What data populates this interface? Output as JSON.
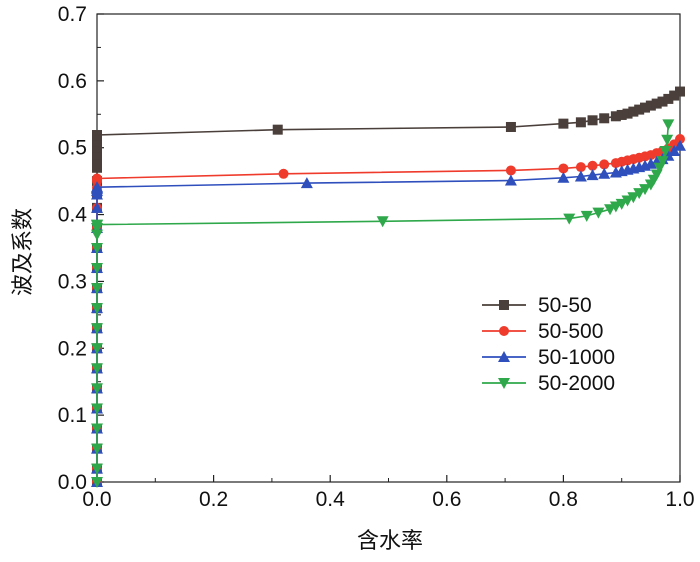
{
  "chart_data": {
    "type": "line",
    "title": "",
    "xlabel": "含水率",
    "ylabel": "波及系数",
    "xlim": [
      0,
      1.0
    ],
    "ylim": [
      0,
      0.7
    ],
    "x_ticks": [
      "0.0",
      "0.2",
      "0.4",
      "0.6",
      "0.8",
      "1.0"
    ],
    "y_ticks": [
      "0.0",
      "0.1",
      "0.2",
      "0.3",
      "0.4",
      "0.5",
      "0.6",
      "0.7"
    ],
    "legend_position": "right-middle",
    "grid": false,
    "series": [
      {
        "name": "50-50",
        "color": "#4a3f3a",
        "marker": "square",
        "x": [
          0,
          0,
          0,
          0,
          0,
          0,
          0,
          0,
          0,
          0,
          0,
          0,
          0,
          0,
          0,
          0,
          0,
          0,
          0,
          0,
          0,
          0,
          0,
          0.31,
          0.71,
          0.8,
          0.83,
          0.85,
          0.87,
          0.89,
          0.9,
          0.91,
          0.92,
          0.93,
          0.94,
          0.95,
          0.96,
          0.97,
          0.98,
          0.99,
          1.0
        ],
        "y": [
          0.0,
          0.02,
          0.05,
          0.08,
          0.11,
          0.14,
          0.17,
          0.2,
          0.23,
          0.26,
          0.29,
          0.32,
          0.35,
          0.38,
          0.41,
          0.43,
          0.45,
          0.47,
          0.48,
          0.49,
          0.5,
          0.51,
          0.519,
          0.527,
          0.531,
          0.536,
          0.538,
          0.541,
          0.544,
          0.547,
          0.549,
          0.551,
          0.554,
          0.557,
          0.56,
          0.563,
          0.566,
          0.569,
          0.573,
          0.578,
          0.584
        ]
      },
      {
        "name": "50-500",
        "color": "#ef3b2c",
        "marker": "circle",
        "x": [
          0,
          0,
          0,
          0,
          0,
          0,
          0,
          0,
          0,
          0,
          0,
          0,
          0,
          0,
          0,
          0,
          0,
          0,
          0,
          0,
          0,
          0.32,
          0.71,
          0.8,
          0.83,
          0.85,
          0.87,
          0.89,
          0.9,
          0.91,
          0.92,
          0.93,
          0.94,
          0.95,
          0.96,
          0.97,
          0.98,
          0.99,
          1.0
        ],
        "y": [
          0.0,
          0.02,
          0.05,
          0.08,
          0.11,
          0.14,
          0.17,
          0.2,
          0.23,
          0.26,
          0.29,
          0.32,
          0.35,
          0.38,
          0.41,
          0.43,
          0.44,
          0.45,
          0.452,
          0.453,
          0.454,
          0.461,
          0.466,
          0.469,
          0.471,
          0.473,
          0.475,
          0.477,
          0.479,
          0.481,
          0.483,
          0.485,
          0.487,
          0.489,
          0.492,
          0.495,
          0.499,
          0.505,
          0.513
        ]
      },
      {
        "name": "50-1000",
        "color": "#2f4fbd",
        "marker": "triangle-up",
        "x": [
          0,
          0,
          0,
          0,
          0,
          0,
          0,
          0,
          0,
          0,
          0,
          0,
          0,
          0,
          0,
          0,
          0,
          0,
          0,
          0,
          0.36,
          0.71,
          0.8,
          0.83,
          0.85,
          0.87,
          0.89,
          0.9,
          0.91,
          0.92,
          0.93,
          0.94,
          0.95,
          0.96,
          0.97,
          0.98,
          0.99,
          1.0
        ],
        "y": [
          0.0,
          0.02,
          0.05,
          0.08,
          0.11,
          0.14,
          0.17,
          0.2,
          0.23,
          0.26,
          0.29,
          0.32,
          0.35,
          0.38,
          0.41,
          0.43,
          0.435,
          0.438,
          0.44,
          0.441,
          0.447,
          0.451,
          0.455,
          0.457,
          0.459,
          0.461,
          0.463,
          0.465,
          0.467,
          0.469,
          0.471,
          0.473,
          0.476,
          0.479,
          0.483,
          0.488,
          0.495,
          0.503
        ]
      },
      {
        "name": "50-2000",
        "color": "#2ea84a",
        "marker": "triangle-down",
        "x": [
          0,
          0,
          0,
          0,
          0,
          0,
          0,
          0,
          0,
          0,
          0,
          0,
          0,
          0,
          0,
          0,
          0,
          0.49,
          0.81,
          0.84,
          0.86,
          0.88,
          0.89,
          0.9,
          0.91,
          0.92,
          0.93,
          0.94,
          0.95,
          0.955,
          0.96,
          0.965,
          0.97,
          0.975,
          0.978,
          0.98
        ],
        "y": [
          0.0,
          0.02,
          0.05,
          0.08,
          0.11,
          0.14,
          0.17,
          0.2,
          0.23,
          0.26,
          0.29,
          0.32,
          0.35,
          0.37,
          0.38,
          0.384,
          0.385,
          0.39,
          0.394,
          0.398,
          0.403,
          0.408,
          0.412,
          0.416,
          0.421,
          0.426,
          0.432,
          0.438,
          0.445,
          0.452,
          0.46,
          0.47,
          0.48,
          0.495,
          0.512,
          0.535
        ]
      }
    ]
  }
}
